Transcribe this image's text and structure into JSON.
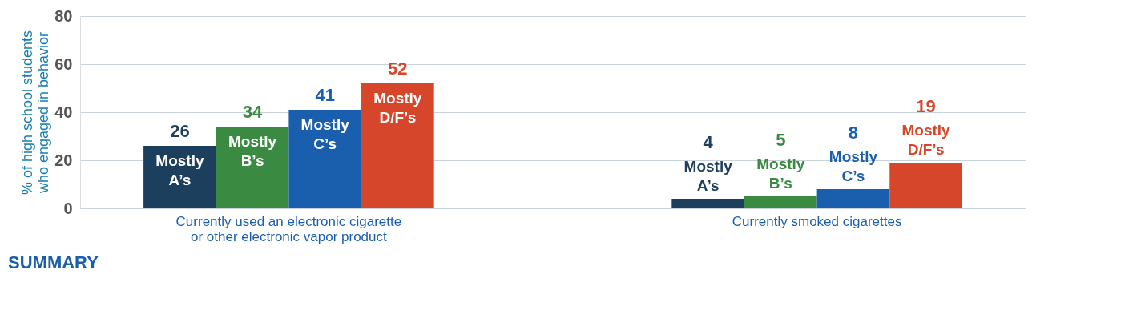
{
  "chart_data": {
    "type": "bar",
    "categories": [
      "Currently used an electronic cigarette or other electronic vapor product",
      "Currently smoked cigarettes"
    ],
    "series": [
      {
        "name": "Mostly A’s",
        "color": "#1c3f5e",
        "values": [
          26,
          4
        ]
      },
      {
        "name": "Mostly B’s",
        "color": "#3a8a41",
        "values": [
          34,
          5
        ]
      },
      {
        "name": "Mostly C’s",
        "color": "#1a5fad",
        "values": [
          41,
          8
        ]
      },
      {
        "name": "Mostly D/F’s",
        "color": "#d5462a",
        "values": [
          52,
          19
        ]
      }
    ],
    "ylabel": "% of high school students who engaged in behavior",
    "ylim": [
      0,
      80
    ],
    "yticks": [
      0,
      20,
      40,
      60,
      80
    ],
    "grid": "y",
    "legend": false,
    "data_labels": true,
    "annotations": [
      "SUMMARY"
    ]
  }
}
